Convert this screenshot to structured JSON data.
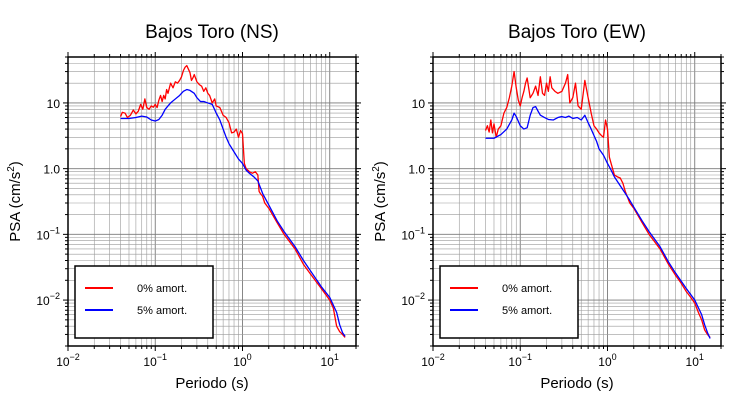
{
  "chart_data": [
    {
      "type": "line",
      "title": "Bajos Toro (NS)",
      "xlabel": "Periodo (s)",
      "ylabel_base": "PSA (cm/s",
      "ylabel_sup": "2",
      "ylabel_end": ")",
      "xscale": "log",
      "yscale": "log",
      "xlim": [
        0.01,
        20
      ],
      "ylim": [
        0.002,
        50
      ],
      "grid": true,
      "legend_position": "bottom-left",
      "x_ticks": [
        {
          "base": "10",
          "exp": "−2"
        },
        {
          "base": "10",
          "exp": "−1"
        },
        {
          "base": "10",
          "exp": "0"
        },
        {
          "base": "10",
          "exp": "1"
        }
      ],
      "y_ticks": [
        {
          "base": "10",
          "exp": "−2"
        },
        {
          "base": "10",
          "exp": "−1"
        },
        {
          "base": "",
          "exp": "",
          "text": "1.0"
        },
        {
          "base": "",
          "exp": "",
          "text": "10"
        }
      ],
      "series": [
        {
          "name": "0% amort.",
          "color": "#ff0000",
          "points": [
            [
              0.04,
              6.2
            ],
            [
              0.042,
              7.2
            ],
            [
              0.045,
              7.0
            ],
            [
              0.048,
              6.0
            ],
            [
              0.052,
              6.5
            ],
            [
              0.056,
              7.8
            ],
            [
              0.06,
              6.8
            ],
            [
              0.064,
              7.5
            ],
            [
              0.068,
              9.5
            ],
            [
              0.072,
              8.0
            ],
            [
              0.076,
              11.5
            ],
            [
              0.08,
              8.5
            ],
            [
              0.085,
              8.0
            ],
            [
              0.09,
              9.0
            ],
            [
              0.095,
              8.6
            ],
            [
              0.1,
              9.5
            ],
            [
              0.105,
              8.5
            ],
            [
              0.11,
              11.0
            ],
            [
              0.115,
              13.0
            ],
            [
              0.12,
              10.5
            ],
            [
              0.125,
              13.0
            ],
            [
              0.13,
              11.5
            ],
            [
              0.135,
              16.0
            ],
            [
              0.14,
              14.0
            ],
            [
              0.15,
              20.0
            ],
            [
              0.16,
              17.0
            ],
            [
              0.17,
              21.0
            ],
            [
              0.18,
              20.0
            ],
            [
              0.19,
              22.0
            ],
            [
              0.2,
              25.0
            ],
            [
              0.21,
              31.0
            ],
            [
              0.22,
              35.0
            ],
            [
              0.23,
              37.0
            ],
            [
              0.25,
              29.0
            ],
            [
              0.26,
              22.0
            ],
            [
              0.27,
              24.0
            ],
            [
              0.28,
              27.0
            ],
            [
              0.3,
              21.0
            ],
            [
              0.32,
              19.0
            ],
            [
              0.34,
              18.0
            ],
            [
              0.36,
              15.0
            ],
            [
              0.38,
              17.0
            ],
            [
              0.4,
              14.0
            ],
            [
              0.42,
              13.0
            ],
            [
              0.45,
              10.0
            ],
            [
              0.48,
              11.5
            ],
            [
              0.5,
              9.0
            ],
            [
              0.55,
              8.5
            ],
            [
              0.6,
              6.5
            ],
            [
              0.65,
              6.0
            ],
            [
              0.7,
              5.0
            ],
            [
              0.75,
              3.5
            ],
            [
              0.8,
              3.6
            ],
            [
              0.85,
              4.0
            ],
            [
              0.9,
              3.0
            ],
            [
              0.95,
              3.8
            ],
            [
              1.0,
              3.4
            ],
            [
              1.05,
              1.2
            ],
            [
              1.1,
              1.0
            ],
            [
              1.2,
              0.9
            ],
            [
              1.3,
              0.85
            ],
            [
              1.4,
              0.9
            ],
            [
              1.5,
              0.8
            ],
            [
              1.55,
              0.45
            ],
            [
              1.6,
              0.42
            ],
            [
              1.7,
              0.38
            ],
            [
              1.8,
              0.3
            ],
            [
              2.0,
              0.25
            ],
            [
              2.5,
              0.15
            ],
            [
              3.0,
              0.1
            ],
            [
              4.0,
              0.06
            ],
            [
              5.0,
              0.035
            ],
            [
              6.0,
              0.025
            ],
            [
              8.0,
              0.015
            ],
            [
              10.0,
              0.01
            ],
            [
              11.0,
              0.0075
            ],
            [
              12.0,
              0.004
            ],
            [
              13.0,
              0.0033
            ],
            [
              14.0,
              0.003
            ],
            [
              15.0,
              0.0027
            ]
          ]
        },
        {
          "name": "5% amort.",
          "color": "#0000ff",
          "points": [
            [
              0.04,
              5.8
            ],
            [
              0.05,
              5.8
            ],
            [
              0.06,
              6.0
            ],
            [
              0.07,
              6.3
            ],
            [
              0.08,
              6.1
            ],
            [
              0.09,
              5.5
            ],
            [
              0.1,
              5.3
            ],
            [
              0.11,
              5.6
            ],
            [
              0.12,
              6.5
            ],
            [
              0.13,
              8.0
            ],
            [
              0.14,
              9.0
            ],
            [
              0.15,
              10.0
            ],
            [
              0.17,
              11.5
            ],
            [
              0.19,
              13.0
            ],
            [
              0.21,
              15.0
            ],
            [
              0.23,
              16.0
            ],
            [
              0.25,
              15.5
            ],
            [
              0.28,
              14.0
            ],
            [
              0.3,
              12.0
            ],
            [
              0.33,
              10.5
            ],
            [
              0.36,
              10.5
            ],
            [
              0.4,
              10.0
            ],
            [
              0.45,
              9.5
            ],
            [
              0.5,
              7.0
            ],
            [
              0.55,
              5.5
            ],
            [
              0.6,
              4.0
            ],
            [
              0.65,
              3.0
            ],
            [
              0.7,
              2.4
            ],
            [
              0.8,
              1.8
            ],
            [
              0.9,
              1.4
            ],
            [
              1.0,
              1.2
            ],
            [
              1.1,
              0.95
            ],
            [
              1.2,
              0.85
            ],
            [
              1.35,
              0.75
            ],
            [
              1.5,
              0.65
            ],
            [
              1.7,
              0.42
            ],
            [
              2.0,
              0.28
            ],
            [
              2.5,
              0.16
            ],
            [
              3.0,
              0.11
            ],
            [
              4.0,
              0.065
            ],
            [
              5.0,
              0.04
            ],
            [
              6.0,
              0.028
            ],
            [
              8.0,
              0.016
            ],
            [
              10.0,
              0.011
            ],
            [
              12.0,
              0.0065
            ],
            [
              13.0,
              0.0042
            ],
            [
              14.0,
              0.0032
            ],
            [
              15.0,
              0.0028
            ]
          ]
        }
      ]
    },
    {
      "type": "line",
      "title": "Bajos Toro (EW)",
      "xlabel": "Periodo (s)",
      "ylabel_base": "PSA (cm/s",
      "ylabel_sup": "2",
      "ylabel_end": ")",
      "xscale": "log",
      "yscale": "log",
      "xlim": [
        0.01,
        20
      ],
      "ylim": [
        0.002,
        50
      ],
      "grid": true,
      "legend_position": "bottom-left",
      "x_ticks": [
        {
          "base": "10",
          "exp": "−2"
        },
        {
          "base": "10",
          "exp": "−1"
        },
        {
          "base": "10",
          "exp": "0"
        },
        {
          "base": "10",
          "exp": "1"
        }
      ],
      "y_ticks": [
        {
          "base": "10",
          "exp": "−2"
        },
        {
          "base": "10",
          "exp": "−1"
        },
        {
          "base": "",
          "exp": "",
          "text": "1.0"
        },
        {
          "base": "",
          "exp": "",
          "text": "10"
        }
      ],
      "series": [
        {
          "name": "0% amort.",
          "color": "#ff0000",
          "points": [
            [
              0.04,
              3.8
            ],
            [
              0.042,
              4.5
            ],
            [
              0.044,
              3.6
            ],
            [
              0.046,
              5.5
            ],
            [
              0.048,
              3.5
            ],
            [
              0.05,
              4.8
            ],
            [
              0.053,
              3.0
            ],
            [
              0.056,
              4.0
            ],
            [
              0.06,
              4.5
            ],
            [
              0.065,
              7.0
            ],
            [
              0.07,
              8.5
            ],
            [
              0.075,
              12.0
            ],
            [
              0.08,
              18.0
            ],
            [
              0.085,
              30.0
            ],
            [
              0.09,
              17.0
            ],
            [
              0.095,
              11.0
            ],
            [
              0.1,
              9.0
            ],
            [
              0.105,
              12.0
            ],
            [
              0.11,
              15.0
            ],
            [
              0.115,
              20.0
            ],
            [
              0.12,
              24.0
            ],
            [
              0.13,
              12.0
            ],
            [
              0.14,
              14.0
            ],
            [
              0.15,
              18.0
            ],
            [
              0.16,
              13.0
            ],
            [
              0.17,
              25.0
            ],
            [
              0.18,
              14.0
            ],
            [
              0.19,
              13.0
            ],
            [
              0.2,
              20.0
            ],
            [
              0.21,
              15.0
            ],
            [
              0.22,
              25.0
            ],
            [
              0.23,
              17.0
            ],
            [
              0.25,
              15.0
            ],
            [
              0.27,
              14.0
            ],
            [
              0.3,
              15.0
            ],
            [
              0.33,
              20.0
            ],
            [
              0.35,
              27.0
            ],
            [
              0.37,
              10.0
            ],
            [
              0.4,
              12.0
            ],
            [
              0.43,
              20.0
            ],
            [
              0.46,
              9.0
            ],
            [
              0.5,
              8.0
            ],
            [
              0.55,
              22.0
            ],
            [
              0.6,
              12.0
            ],
            [
              0.65,
              7.0
            ],
            [
              0.7,
              4.5
            ],
            [
              0.75,
              4.0
            ],
            [
              0.8,
              3.5
            ],
            [
              0.85,
              3.2
            ],
            [
              0.9,
              3.0
            ],
            [
              0.95,
              5.5
            ],
            [
              1.0,
              4.0
            ],
            [
              1.05,
              1.5
            ],
            [
              1.1,
              1.2
            ],
            [
              1.2,
              0.8
            ],
            [
              1.3,
              0.75
            ],
            [
              1.4,
              0.72
            ],
            [
              1.5,
              0.6
            ],
            [
              1.6,
              0.45
            ],
            [
              1.8,
              0.3
            ],
            [
              2.0,
              0.25
            ],
            [
              2.5,
              0.15
            ],
            [
              3.0,
              0.1
            ],
            [
              4.0,
              0.06
            ],
            [
              5.0,
              0.035
            ],
            [
              6.0,
              0.024
            ],
            [
              7.0,
              0.018
            ],
            [
              8.0,
              0.0135
            ],
            [
              9.0,
              0.011
            ],
            [
              10.0,
              0.009
            ],
            [
              11.0,
              0.0065
            ],
            [
              12.0,
              0.005
            ],
            [
              13.0,
              0.0035
            ],
            [
              14.0,
              0.003
            ],
            [
              15.0,
              0.0027
            ]
          ]
        },
        {
          "name": "5% amort.",
          "color": "#0000ff",
          "points": [
            [
              0.04,
              2.9
            ],
            [
              0.05,
              2.9
            ],
            [
              0.06,
              3.3
            ],
            [
              0.07,
              4.0
            ],
            [
              0.08,
              5.5
            ],
            [
              0.085,
              7.0
            ],
            [
              0.09,
              6.2
            ],
            [
              0.1,
              4.5
            ],
            [
              0.11,
              4.0
            ],
            [
              0.12,
              4.2
            ],
            [
              0.13,
              6.5
            ],
            [
              0.14,
              8.5
            ],
            [
              0.15,
              8.8
            ],
            [
              0.16,
              7.5
            ],
            [
              0.17,
              6.5
            ],
            [
              0.19,
              6.0
            ],
            [
              0.21,
              5.6
            ],
            [
              0.24,
              5.5
            ],
            [
              0.27,
              6.0
            ],
            [
              0.3,
              6.2
            ],
            [
              0.33,
              6.0
            ],
            [
              0.36,
              6.3
            ],
            [
              0.4,
              5.8
            ],
            [
              0.45,
              6.0
            ],
            [
              0.5,
              5.5
            ],
            [
              0.55,
              6.5
            ],
            [
              0.6,
              5.0
            ],
            [
              0.65,
              4.0
            ],
            [
              0.7,
              3.2
            ],
            [
              0.75,
              2.6
            ],
            [
              0.8,
              2.0
            ],
            [
              0.9,
              1.6
            ],
            [
              1.0,
              1.2
            ],
            [
              1.1,
              0.95
            ],
            [
              1.2,
              0.75
            ],
            [
              1.4,
              0.55
            ],
            [
              1.6,
              0.42
            ],
            [
              1.8,
              0.33
            ],
            [
              2.0,
              0.26
            ],
            [
              2.5,
              0.16
            ],
            [
              3.0,
              0.11
            ],
            [
              4.0,
              0.065
            ],
            [
              5.0,
              0.038
            ],
            [
              6.0,
              0.026
            ],
            [
              8.0,
              0.015
            ],
            [
              10.0,
              0.01
            ],
            [
              12.0,
              0.006
            ],
            [
              13.0,
              0.0042
            ],
            [
              14.0,
              0.0032
            ],
            [
              15.0,
              0.0026
            ]
          ]
        }
      ]
    }
  ]
}
